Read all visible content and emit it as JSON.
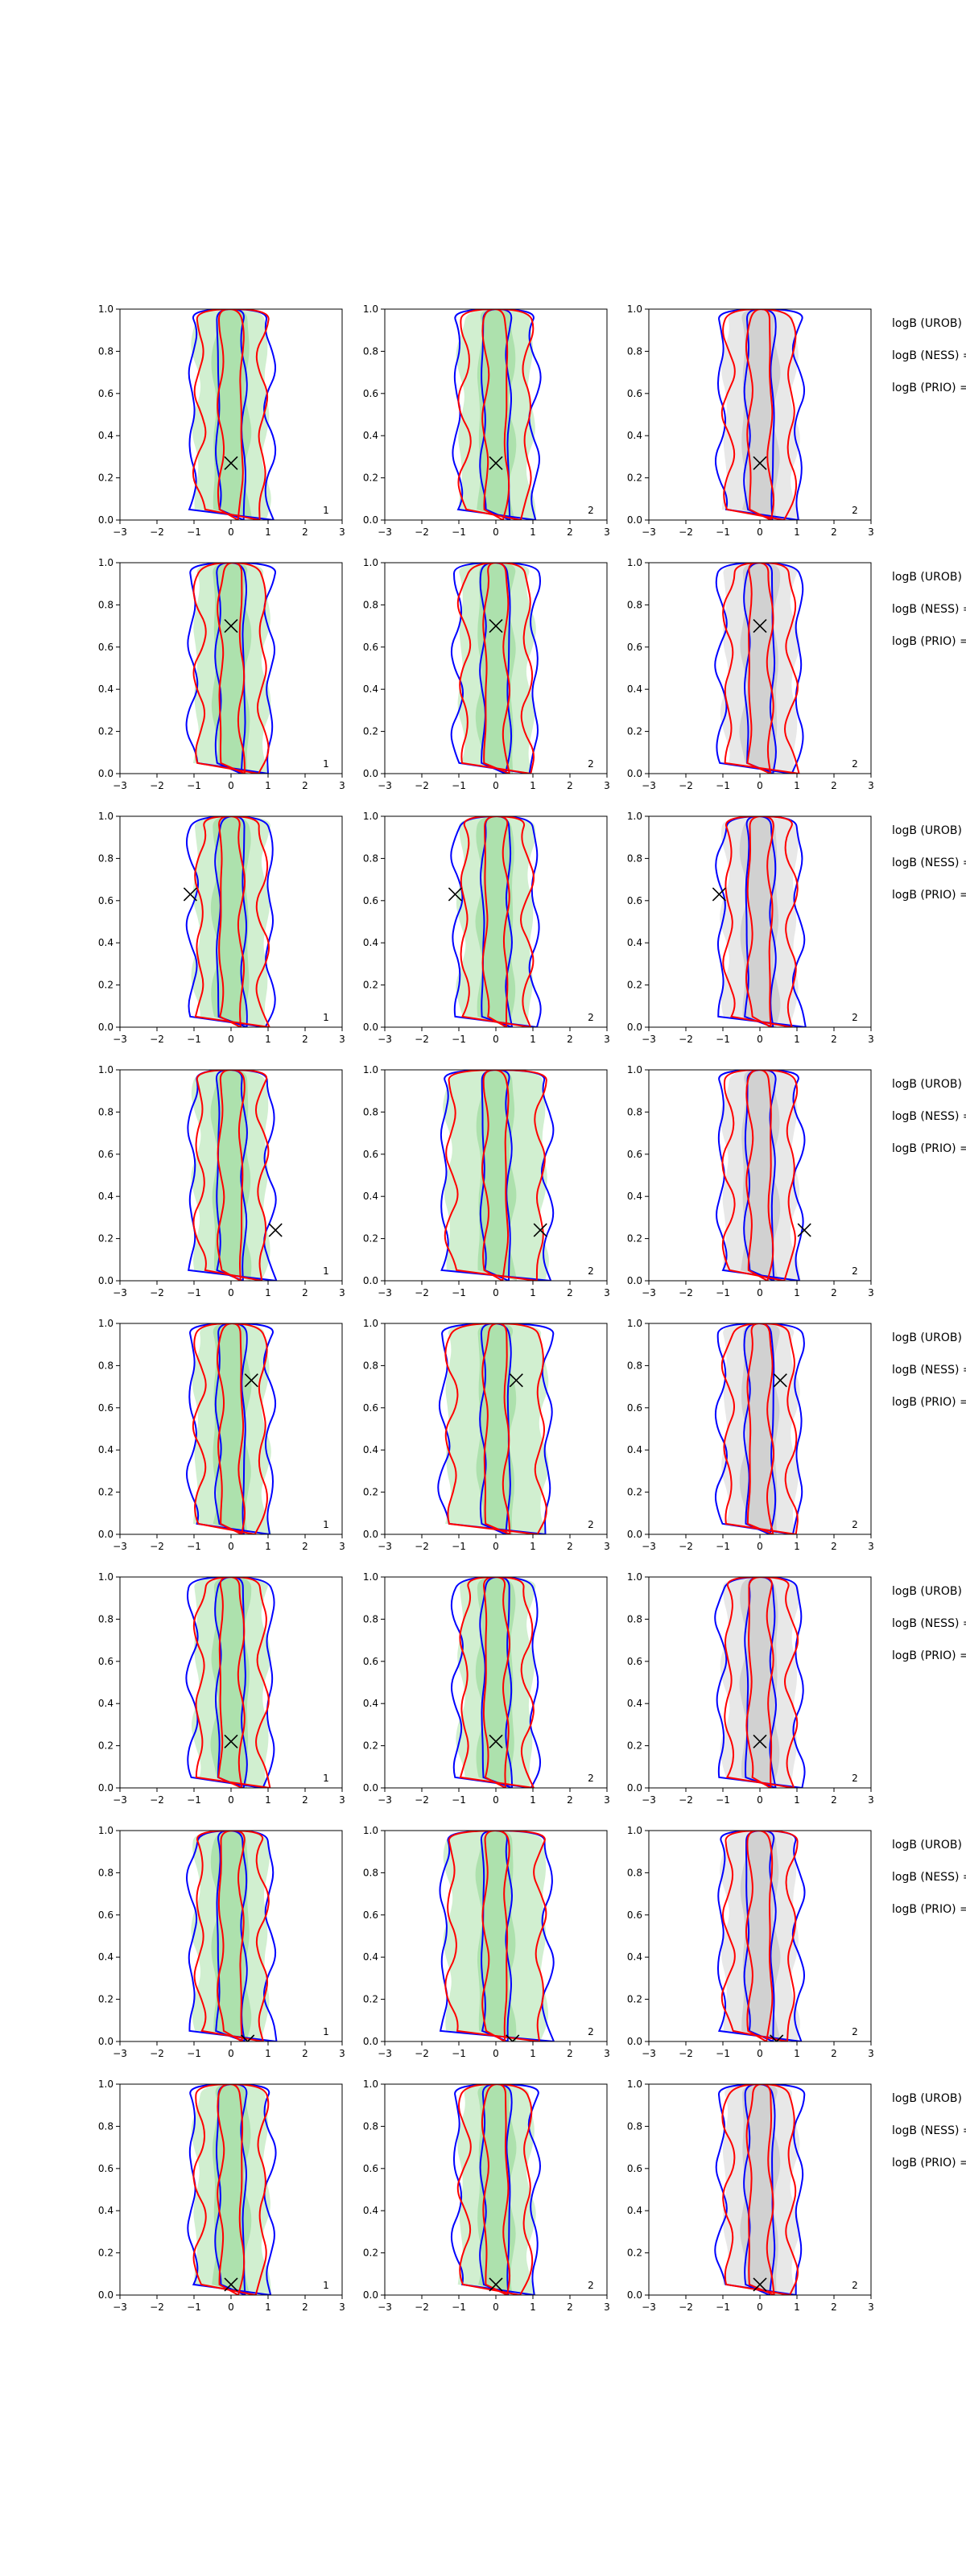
{
  "figure": {
    "rows": 8,
    "cols": 3,
    "xlim": [
      -3,
      3
    ],
    "ylim": [
      0,
      1
    ],
    "xticks": [
      "−3",
      "−2",
      "−1",
      "0",
      "1",
      "2",
      "3"
    ],
    "yticks": [
      "0.0",
      "0.2",
      "0.4",
      "0.6",
      "0.8",
      "1.0"
    ],
    "panel_numbers": [
      "1",
      "2",
      "2"
    ],
    "side_labels": [
      "logB (UROB) =",
      "logB (NESS) =",
      "logB (PRIO) ="
    ]
  },
  "colors": {
    "inner_fill": "#8fd690",
    "outer_fill": "#c9ecc8",
    "gray_inner": "#bdbdbd",
    "gray_outer": "#e4e4e4",
    "blue": "#0000ff",
    "red": "#ff0000",
    "marker": "#000000"
  },
  "chart_data": {
    "type": "contour",
    "description_series": [
      {
        "name": "logB (UROB)"
      },
      {
        "name": "logB (NESS)"
      },
      {
        "name": "logB (PRIO)"
      }
    ],
    "markers": [
      {
        "x": 0.0,
        "y": 0.27
      },
      {
        "x": 0.0,
        "y": 0.7
      },
      {
        "x": -1.1,
        "y": 0.63
      },
      {
        "x": 1.2,
        "y": 0.24
      },
      {
        "x": 0.55,
        "y": 0.73
      },
      {
        "x": 0.0,
        "y": 0.22
      },
      {
        "x": 0.45,
        "y": 0.0
      },
      {
        "x": 0.0,
        "y": 0.05
      }
    ]
  }
}
